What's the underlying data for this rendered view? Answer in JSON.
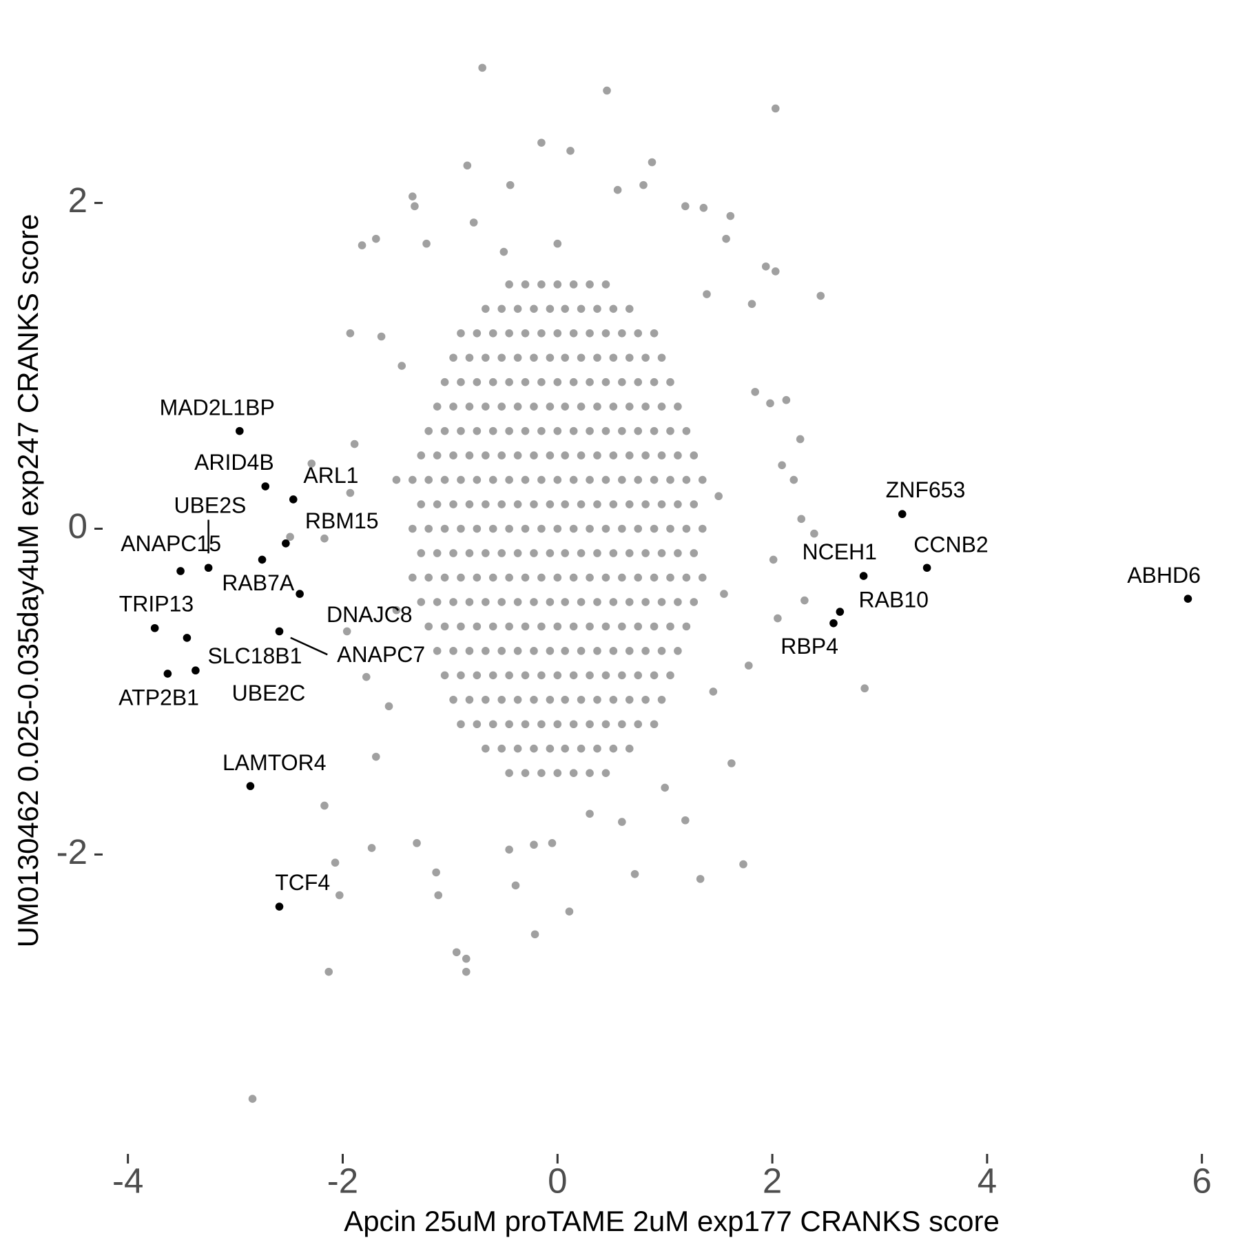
{
  "chart_data": {
    "type": "scatter",
    "x_label": "Apcin 25uM proTAME 2uM exp177 CRANKS score",
    "y_label": "UM0130462 0.025-0.035day4uM exp247 CRANKS score",
    "xlim": [
      -4.37,
      6.22
    ],
    "ylim": [
      -3.8,
      2.95
    ],
    "xticks": [
      -4,
      -2,
      0,
      2,
      4,
      6
    ],
    "yticks": [
      -2,
      0,
      2
    ],
    "series": [
      {
        "color": "#a0a0a0",
        "x": [
          -0.45,
          -0.3,
          -0.15,
          0,
          0.15,
          0.3,
          0.45,
          -0.67,
          -0.52,
          -0.37,
          -0.22,
          -0.07,
          0.07,
          0.22,
          0.37,
          0.52,
          0.67,
          -0.9,
          -0.75,
          -0.6,
          -0.45,
          -0.3,
          -0.15,
          0,
          0.15,
          0.3,
          0.45,
          0.6,
          0.75,
          0.9,
          -0.97,
          -0.82,
          -0.67,
          -0.52,
          -0.37,
          -0.22,
          -0.07,
          0.07,
          0.22,
          0.37,
          0.52,
          0.67,
          0.82,
          0.97,
          -1.05,
          -0.9,
          -0.75,
          -0.6,
          -0.45,
          -0.3,
          -0.15,
          0,
          0.15,
          0.3,
          0.45,
          0.6,
          0.75,
          0.9,
          1.05,
          -1.12,
          -0.97,
          -0.82,
          -0.67,
          -0.52,
          -0.37,
          -0.22,
          -0.07,
          0.07,
          0.22,
          0.37,
          0.52,
          0.67,
          0.82,
          0.97,
          1.12,
          -1.2,
          -1.05,
          -0.9,
          -0.75,
          -0.6,
          -0.45,
          -0.3,
          -0.15,
          0,
          0.15,
          0.3,
          0.45,
          0.6,
          0.75,
          0.9,
          1.05,
          1.2,
          -1.27,
          -1.12,
          -0.97,
          -0.82,
          -0.67,
          -0.52,
          -0.37,
          -0.22,
          -0.07,
          0.07,
          0.22,
          0.37,
          0.52,
          0.67,
          0.82,
          0.97,
          1.12,
          1.27,
          -1.35,
          -1.2,
          -1.05,
          -0.9,
          -0.75,
          -0.6,
          -0.45,
          -0.3,
          -0.15,
          0,
          0.15,
          0.3,
          0.45,
          0.6,
          0.75,
          0.9,
          1.05,
          1.2,
          1.35,
          -1.27,
          -1.12,
          -0.97,
          -0.82,
          -0.67,
          -0.52,
          -0.37,
          -0.22,
          -0.07,
          0.07,
          0.22,
          0.37,
          0.52,
          0.67,
          0.82,
          0.97,
          1.12,
          1.27,
          -1.35,
          -1.2,
          -1.05,
          -0.9,
          -0.75,
          -0.6,
          -0.45,
          -0.3,
          -0.15,
          0,
          0.15,
          0.3,
          0.45,
          0.6,
          0.75,
          0.9,
          1.05,
          1.2,
          1.35,
          -1.27,
          -1.12,
          -0.97,
          -0.82,
          -0.67,
          -0.52,
          -0.37,
          -0.22,
          -0.07,
          0.07,
          0.22,
          0.37,
          0.52,
          0.67,
          0.82,
          0.97,
          1.12,
          1.27,
          -1.35,
          -1.2,
          -1.05,
          -0.9,
          -0.75,
          -0.6,
          -0.45,
          -0.3,
          -0.15,
          0,
          0.15,
          0.3,
          0.45,
          0.6,
          0.75,
          0.9,
          1.05,
          1.2,
          1.35,
          -1.27,
          -1.12,
          -0.97,
          -0.82,
          -0.67,
          -0.52,
          -0.37,
          -0.22,
          -0.07,
          0.07,
          0.22,
          0.37,
          0.52,
          0.67,
          0.82,
          0.97,
          1.12,
          1.27,
          -1.2,
          -1.05,
          -0.9,
          -0.75,
          -0.6,
          -0.45,
          -0.3,
          -0.15,
          0,
          0.15,
          0.3,
          0.45,
          0.6,
          0.75,
          0.9,
          1.05,
          1.2,
          -1.12,
          -0.97,
          -0.82,
          -0.67,
          -0.52,
          -0.37,
          -0.22,
          -0.07,
          0.07,
          0.22,
          0.37,
          0.52,
          0.67,
          0.82,
          0.97,
          1.12,
          -1.05,
          -0.9,
          -0.75,
          -0.6,
          -0.45,
          -0.3,
          -0.15,
          0,
          0.15,
          0.3,
          0.45,
          0.6,
          0.75,
          0.9,
          1.05,
          -0.97,
          -0.82,
          -0.67,
          -0.52,
          -0.37,
          -0.22,
          -0.07,
          0.07,
          0.22,
          0.37,
          0.52,
          0.67,
          0.82,
          0.97,
          -0.9,
          -0.75,
          -0.6,
          -0.45,
          -0.3,
          -0.15,
          0,
          0.15,
          0.3,
          0.45,
          0.6,
          0.75,
          0.9,
          -0.67,
          -0.52,
          -0.37,
          -0.22,
          -0.07,
          0.07,
          0.22,
          0.37,
          0.52,
          0.67,
          -0.45,
          -0.3,
          -0.15,
          0,
          0.15,
          0.3,
          0.45
        ],
        "values": [
          1.5,
          1.5,
          1.5,
          1.5,
          1.5,
          1.5,
          1.5,
          1.35,
          1.35,
          1.35,
          1.35,
          1.35,
          1.35,
          1.35,
          1.35,
          1.35,
          1.35,
          1.2,
          1.2,
          1.2,
          1.2,
          1.2,
          1.2,
          1.2,
          1.2,
          1.2,
          1.2,
          1.2,
          1.2,
          1.2,
          1.05,
          1.05,
          1.05,
          1.05,
          1.05,
          1.05,
          1.05,
          1.05,
          1.05,
          1.05,
          1.05,
          1.05,
          1.05,
          1.05,
          0.9,
          0.9,
          0.9,
          0.9,
          0.9,
          0.9,
          0.9,
          0.9,
          0.9,
          0.9,
          0.9,
          0.9,
          0.9,
          0.9,
          0.9,
          0.75,
          0.75,
          0.75,
          0.75,
          0.75,
          0.75,
          0.75,
          0.75,
          0.75,
          0.75,
          0.75,
          0.75,
          0.75,
          0.75,
          0.75,
          0.75,
          0.6,
          0.6,
          0.6,
          0.6,
          0.6,
          0.6,
          0.6,
          0.6,
          0.6,
          0.6,
          0.6,
          0.6,
          0.6,
          0.6,
          0.6,
          0.6,
          0.6,
          0.45,
          0.45,
          0.45,
          0.45,
          0.45,
          0.45,
          0.45,
          0.45,
          0.45,
          0.45,
          0.45,
          0.45,
          0.45,
          0.45,
          0.45,
          0.45,
          0.45,
          0.45,
          0.3,
          0.3,
          0.3,
          0.3,
          0.3,
          0.3,
          0.3,
          0.3,
          0.3,
          0.3,
          0.3,
          0.3,
          0.3,
          0.3,
          0.3,
          0.3,
          0.3,
          0.3,
          0.3,
          0.15,
          0.15,
          0.15,
          0.15,
          0.15,
          0.15,
          0.15,
          0.15,
          0.15,
          0.15,
          0.15,
          0.15,
          0.15,
          0.15,
          0.15,
          0.15,
          0.15,
          0.15,
          0,
          0,
          0,
          0,
          0,
          0,
          0,
          0,
          0,
          0,
          0,
          0,
          0,
          0,
          0,
          0,
          0,
          0,
          0,
          -0.15,
          -0.15,
          -0.15,
          -0.15,
          -0.15,
          -0.15,
          -0.15,
          -0.15,
          -0.15,
          -0.15,
          -0.15,
          -0.15,
          -0.15,
          -0.15,
          -0.15,
          -0.15,
          -0.15,
          -0.15,
          -0.3,
          -0.3,
          -0.3,
          -0.3,
          -0.3,
          -0.3,
          -0.3,
          -0.3,
          -0.3,
          -0.3,
          -0.3,
          -0.3,
          -0.3,
          -0.3,
          -0.3,
          -0.3,
          -0.3,
          -0.3,
          -0.3,
          -0.45,
          -0.45,
          -0.45,
          -0.45,
          -0.45,
          -0.45,
          -0.45,
          -0.45,
          -0.45,
          -0.45,
          -0.45,
          -0.45,
          -0.45,
          -0.45,
          -0.45,
          -0.45,
          -0.45,
          -0.45,
          -0.6,
          -0.6,
          -0.6,
          -0.6,
          -0.6,
          -0.6,
          -0.6,
          -0.6,
          -0.6,
          -0.6,
          -0.6,
          -0.6,
          -0.6,
          -0.6,
          -0.6,
          -0.6,
          -0.6,
          -0.75,
          -0.75,
          -0.75,
          -0.75,
          -0.75,
          -0.75,
          -0.75,
          -0.75,
          -0.75,
          -0.75,
          -0.75,
          -0.75,
          -0.75,
          -0.75,
          -0.75,
          -0.75,
          -0.9,
          -0.9,
          -0.9,
          -0.9,
          -0.9,
          -0.9,
          -0.9,
          -0.9,
          -0.9,
          -0.9,
          -0.9,
          -0.9,
          -0.9,
          -0.9,
          -0.9,
          -1.05,
          -1.05,
          -1.05,
          -1.05,
          -1.05,
          -1.05,
          -1.05,
          -1.05,
          -1.05,
          -1.05,
          -1.05,
          -1.05,
          -1.05,
          -1.05,
          -1.2,
          -1.2,
          -1.2,
          -1.2,
          -1.2,
          -1.2,
          -1.2,
          -1.2,
          -1.2,
          -1.2,
          -1.2,
          -1.2,
          -1.2,
          -1.35,
          -1.35,
          -1.35,
          -1.35,
          -1.35,
          -1.35,
          -1.35,
          -1.35,
          -1.35,
          -1.35,
          -1.5,
          -1.5,
          -1.5,
          -1.5,
          -1.5,
          -1.5,
          -1.5
        ]
      },
      {
        "color": "#a0a0a0",
        "x": [
          -0.7,
          0.46,
          2.03,
          -0.15,
          0.12,
          0.88,
          -0.84,
          -1.35,
          -1.82,
          -1.69,
          2.45,
          -1.93,
          1.94,
          2.03,
          1.61,
          2.26,
          2.39,
          2.3,
          2.05,
          2.86,
          1.73,
          1.33,
          0.72,
          0.11,
          -0.21,
          -0.85,
          -0.94,
          -0.85,
          -2.13,
          -2.03,
          -2.07,
          -2.17,
          -2.84,
          -1.11,
          -0.39,
          1.19,
          -2.29,
          -2.49,
          -2.17,
          -1.89,
          -1.78,
          -1.73,
          -1.31,
          1.36,
          1.19,
          -0.44,
          0.56,
          0.8,
          1.57,
          2.27,
          2.2,
          1.62,
          1.0,
          -1.33,
          -1.22,
          -0.78,
          -1.69,
          -1.57,
          -1.96,
          -1.93,
          -1.64,
          1.81,
          1.84,
          1.98,
          2.13,
          2.09,
          2.01,
          1.78,
          1.39,
          -1.13,
          -0.45,
          -0.22,
          -0.05,
          -1.5,
          -1.5,
          1.5,
          1.55,
          -1.45,
          1.45,
          0,
          0.3,
          -0.5,
          0.6
        ],
        "values": [
          2.83,
          2.69,
          2.58,
          2.37,
          2.32,
          2.25,
          2.23,
          2.04,
          1.74,
          1.78,
          1.43,
          1.2,
          1.61,
          1.58,
          1.92,
          0.55,
          -0.03,
          -0.44,
          -0.55,
          -0.98,
          -2.06,
          -2.15,
          -2.12,
          -2.35,
          -2.49,
          -2.72,
          -2.6,
          -2.64,
          -2.72,
          -2.25,
          -2.05,
          -1.7,
          -3.5,
          -2.25,
          -2.19,
          -1.79,
          0.4,
          -0.05,
          -0.06,
          0.52,
          -0.91,
          -1.96,
          -1.93,
          1.97,
          1.98,
          2.11,
          2.08,
          2.11,
          1.78,
          0.06,
          0.3,
          -1.44,
          -1.59,
          1.98,
          1.75,
          1.88,
          -1.4,
          -1.09,
          -0.63,
          0.22,
          1.18,
          1.38,
          0.84,
          0.77,
          0.79,
          0.39,
          -0.19,
          -0.84,
          1.44,
          -2.11,
          -1.97,
          -1.94,
          -1.93,
          0.3,
          -0.5,
          0.2,
          -0.4,
          1.0,
          -1.0,
          1.75,
          -1.75,
          1.7,
          -1.8
        ]
      },
      {
        "color": "#000000",
        "labels": [
          "MAD2L1BP",
          "ARID4B",
          "ARL1",
          "UBE2S",
          "ANAPC15",
          "RBM15",
          "RAB7A",
          "DNAJC8",
          "TRIP13",
          "UBE2C",
          "SLC18B1",
          "ATP2B1",
          "ANAPC7",
          "LAMTOR4",
          "TCF4",
          "ZNF653",
          "CCNB2",
          "NCEH1",
          "RAB10",
          "RBP4",
          "ABHD6"
        ],
        "x": [
          -2.96,
          -2.72,
          -2.46,
          -3.25,
          -3.51,
          -2.53,
          -2.75,
          -2.4,
          -3.75,
          -3.45,
          -3.37,
          -3.63,
          -2.59,
          -2.86,
          -2.59,
          3.21,
          3.44,
          2.85,
          2.63,
          2.57,
          5.87
        ],
        "values": [
          0.6,
          0.26,
          0.18,
          -0.24,
          -0.26,
          -0.09,
          -0.19,
          -0.4,
          -0.61,
          -0.67,
          -0.87,
          -0.89,
          -0.63,
          -1.58,
          -2.32,
          0.09,
          -0.24,
          -0.29,
          -0.51,
          -0.58,
          -0.43
        ]
      }
    ]
  }
}
